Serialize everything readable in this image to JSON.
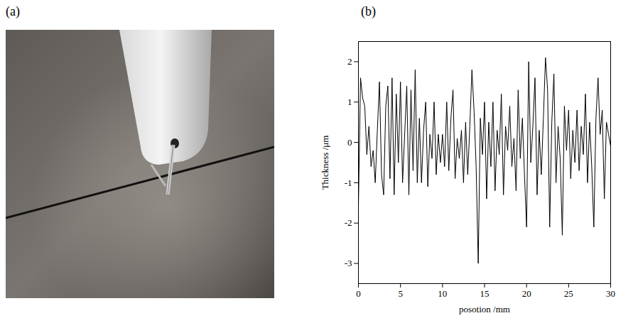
{
  "panel_labels": [
    "(a)",
    "(b)"
  ],
  "chart_data": {
    "type": "line",
    "xlabel": "posotion /mm",
    "ylabel": "Thickness /μm",
    "color": "#000000",
    "xlim": [
      0,
      30
    ],
    "xticks": [
      0,
      5,
      10,
      15,
      20,
      25,
      30
    ],
    "ylim": [
      -3.5,
      2.5
    ],
    "yticks": [
      -3,
      -2,
      -1,
      0,
      1,
      2
    ],
    "grid": false,
    "x": [
      0,
      0.25,
      0.5,
      0.75,
      1,
      1.25,
      1.5,
      1.75,
      2,
      2.25,
      2.5,
      2.75,
      3,
      3.25,
      3.5,
      3.75,
      4,
      4.25,
      4.5,
      4.75,
      5,
      5.25,
      5.5,
      5.75,
      6,
      6.25,
      6.5,
      6.75,
      7,
      7.25,
      7.5,
      7.75,
      8,
      8.25,
      8.5,
      8.75,
      9,
      9.25,
      9.5,
      9.75,
      10,
      10.25,
      10.5,
      10.75,
      11,
      11.25,
      11.5,
      11.75,
      12,
      12.25,
      12.5,
      12.75,
      13,
      13.25,
      13.5,
      13.75,
      14,
      14.25,
      14.5,
      14.75,
      15,
      15.25,
      15.5,
      15.75,
      16,
      16.25,
      16.5,
      16.75,
      17,
      17.25,
      17.5,
      17.75,
      18,
      18.25,
      18.5,
      18.75,
      19,
      19.25,
      19.5,
      19.75,
      20,
      20.25,
      20.5,
      20.75,
      21,
      21.25,
      21.5,
      21.75,
      22,
      22.25,
      22.5,
      22.75,
      23,
      23.25,
      23.5,
      23.75,
      24,
      24.25,
      24.5,
      24.75,
      25,
      25.25,
      25.5,
      25.75,
      26,
      26.25,
      26.5,
      26.75,
      27,
      27.25,
      27.5,
      27.75,
      28,
      28.25,
      28.5,
      28.75,
      29,
      29.25,
      29.5,
      29.75,
      30
    ],
    "values": [
      -1.6,
      1.6,
      1.1,
      0.9,
      -0.3,
      0.4,
      -0.6,
      -0.2,
      -1.0,
      0.3,
      1.5,
      -0.8,
      -1.3,
      0.9,
      1.4,
      -0.9,
      1.6,
      -1.3,
      1.2,
      -0.5,
      1.5,
      -1.0,
      0.2,
      1.4,
      -1.3,
      1.3,
      -0.7,
      1.8,
      -1.0,
      0.6,
      -1.0,
      0.3,
      1.0,
      -1.1,
      0.2,
      -0.4,
      1.0,
      -0.8,
      0.2,
      -0.5,
      0.2,
      -0.6,
      1.0,
      -0.7,
      0.6,
      1.3,
      -0.9,
      0.1,
      -0.4,
      0.3,
      -1.0,
      0.5,
      -0.8,
      0.4,
      1.8,
      0.8,
      -0.6,
      -3.0,
      0.6,
      -0.3,
      1.0,
      -1.4,
      0.5,
      -0.6,
      1.0,
      -1.2,
      0.3,
      -0.3,
      1.2,
      -1.3,
      0.4,
      -0.2,
      0.9,
      -0.6,
      0.1,
      -1.2,
      1.3,
      -0.4,
      0.6,
      -0.8,
      -2.1,
      2.0,
      -0.5,
      0.4,
      1.6,
      -1.3,
      0.3,
      -0.8,
      0.6,
      2.1,
      1.3,
      -2.1,
      0.5,
      1.7,
      -1.0,
      0.4,
      -0.4,
      -2.3,
      0.9,
      -0.2,
      0.8,
      -0.9,
      0.3,
      -0.5,
      0.8,
      -0.7,
      0.4,
      -0.3,
      1.2,
      -1.0,
      0.5,
      -0.6,
      -2.1,
      0.6,
      1.6,
      0.2,
      0.8,
      -1.4,
      0.5,
      0.2,
      -0.1
    ]
  }
}
